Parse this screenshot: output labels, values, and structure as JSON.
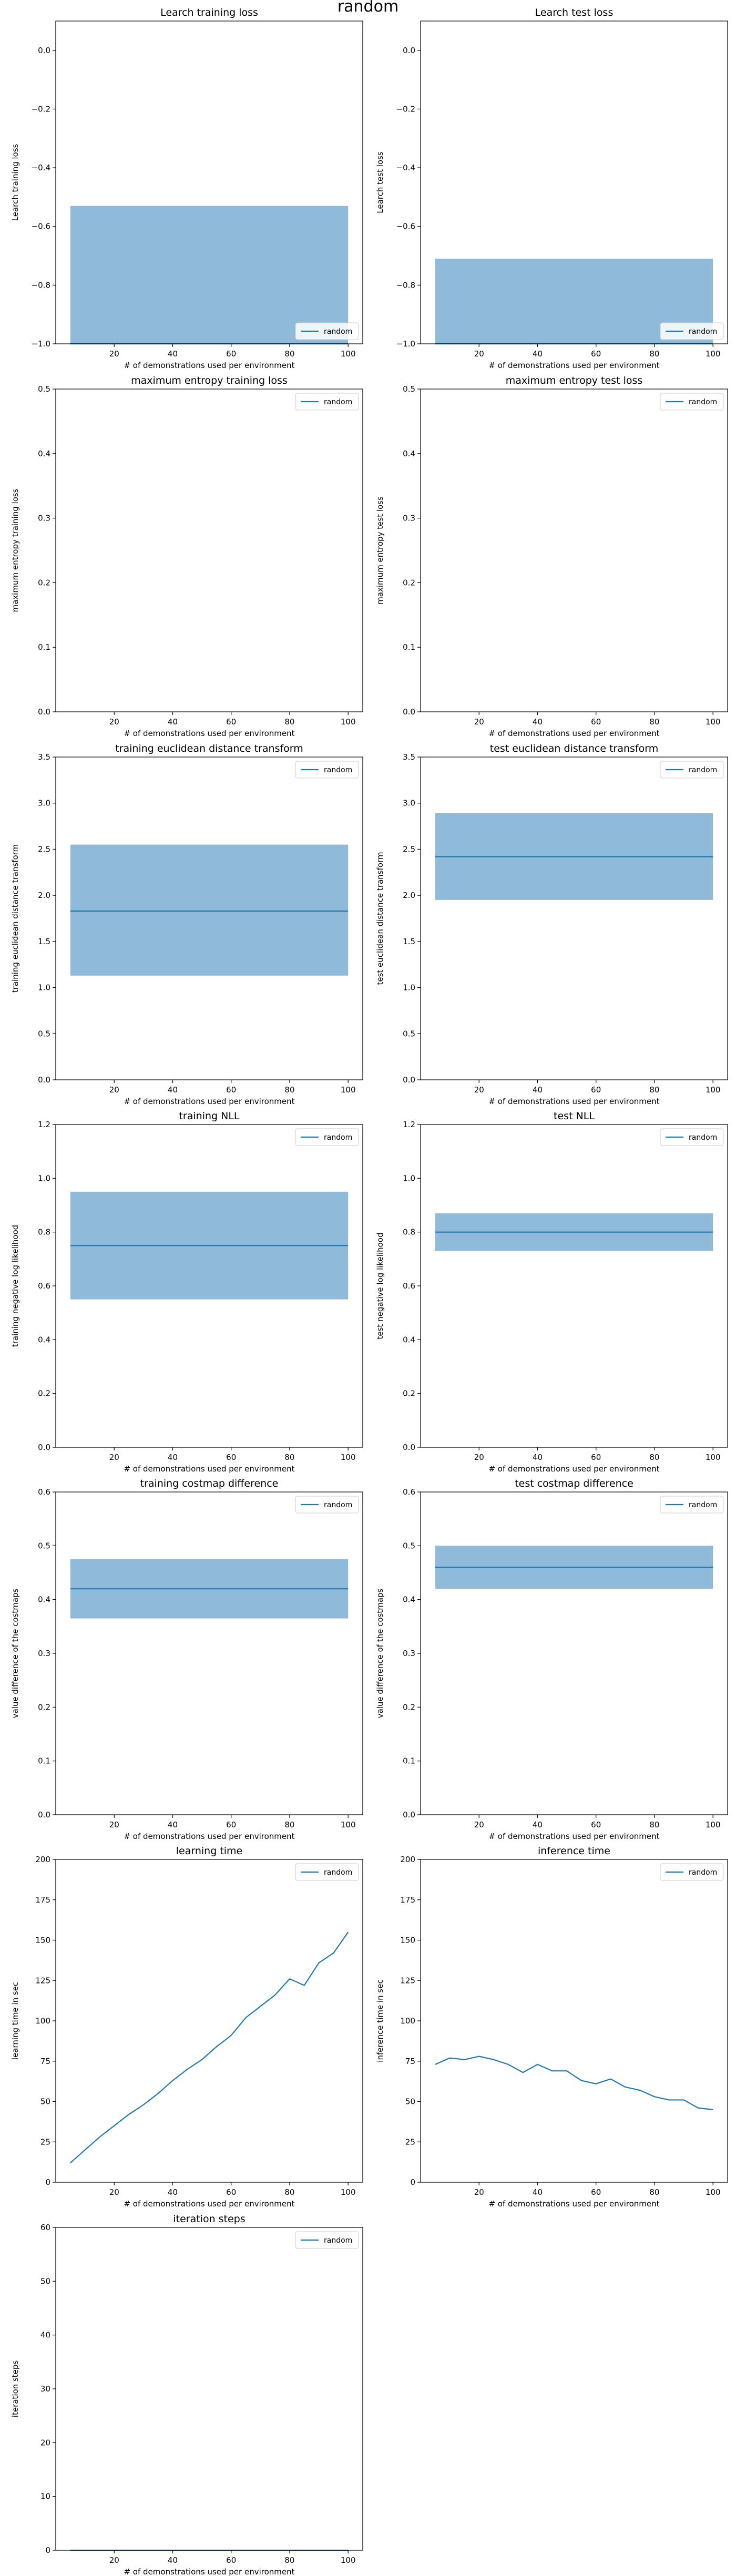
{
  "figure": {
    "suptitle": "random"
  },
  "colors": {
    "band": "#8fbad9",
    "line": "#1f77b4",
    "axes": "#000000"
  },
  "chart_data": [
    {
      "type": "area",
      "title": "Learch training loss",
      "xlabel": "# of demonstrations used per environment",
      "ylabel": "Learch training loss",
      "xlim": [
        0,
        105
      ],
      "ylim": [
        -1.0,
        0.1
      ],
      "xticks": [
        20,
        40,
        60,
        80,
        100
      ],
      "yticks": [
        0.0,
        -0.2,
        -0.4,
        -0.6,
        -0.8,
        -1.0
      ],
      "ytick_labels": [
        "0.0",
        "−0.2",
        "−0.4",
        "−0.6",
        "−0.8",
        "−1.0"
      ],
      "legend": "lower right",
      "series": [
        {
          "name": "random",
          "x": [
            5,
            100
          ],
          "y": [
            -1.0,
            -1.0
          ],
          "lower": [
            -1.0,
            -1.0
          ],
          "upper": [
            -0.53,
            -0.53
          ]
        }
      ]
    },
    {
      "type": "area",
      "title": "Learch test loss",
      "xlabel": "# of demonstrations used per environment",
      "ylabel": "Learch test loss",
      "xlim": [
        0,
        105
      ],
      "ylim": [
        -1.0,
        0.1
      ],
      "xticks": [
        20,
        40,
        60,
        80,
        100
      ],
      "yticks": [
        0.0,
        -0.2,
        -0.4,
        -0.6,
        -0.8,
        -1.0
      ],
      "ytick_labels": [
        "0.0",
        "−0.2",
        "−0.4",
        "−0.6",
        "−0.8",
        "−1.0"
      ],
      "legend": "lower right",
      "series": [
        {
          "name": "random",
          "x": [
            5,
            100
          ],
          "y": [
            -1.0,
            -1.0
          ],
          "lower": [
            -1.0,
            -1.0
          ],
          "upper": [
            -0.71,
            -0.71
          ]
        }
      ]
    },
    {
      "type": "line",
      "title": "maximum entropy training loss",
      "xlabel": "# of demonstrations used per environment",
      "ylabel": "maximum entropy training loss",
      "xlim": [
        0,
        105
      ],
      "ylim": [
        0,
        0.5
      ],
      "xticks": [
        20,
        40,
        60,
        80,
        100
      ],
      "yticks": [
        0.0,
        0.1,
        0.2,
        0.3,
        0.4,
        0.5
      ],
      "ytick_labels": [
        "0.0",
        "0.1",
        "0.2",
        "0.3",
        "0.4",
        "0.5"
      ],
      "legend": "upper right",
      "series": [
        {
          "name": "random",
          "x": [],
          "y": []
        }
      ]
    },
    {
      "type": "line",
      "title": "maximum entropy test loss",
      "xlabel": "# of demonstrations used per environment",
      "ylabel": "maximum entropy test loss",
      "xlim": [
        0,
        105
      ],
      "ylim": [
        0,
        0.5
      ],
      "xticks": [
        20,
        40,
        60,
        80,
        100
      ],
      "yticks": [
        0.0,
        0.1,
        0.2,
        0.3,
        0.4,
        0.5
      ],
      "ytick_labels": [
        "0.0",
        "0.1",
        "0.2",
        "0.3",
        "0.4",
        "0.5"
      ],
      "legend": "upper right",
      "series": [
        {
          "name": "random",
          "x": [],
          "y": []
        }
      ]
    },
    {
      "type": "area",
      "title": "training euclidean distance transform",
      "xlabel": "# of demonstrations used per environment",
      "ylabel": "training euclidean distance transform",
      "xlim": [
        0,
        105
      ],
      "ylim": [
        0,
        3.5
      ],
      "xticks": [
        20,
        40,
        60,
        80,
        100
      ],
      "yticks": [
        0.0,
        0.5,
        1.0,
        1.5,
        2.0,
        2.5,
        3.0,
        3.5
      ],
      "ytick_labels": [
        "0.0",
        "0.5",
        "1.0",
        "1.5",
        "2.0",
        "2.5",
        "3.0",
        "3.5"
      ],
      "legend": "upper right",
      "series": [
        {
          "name": "random",
          "x": [
            5,
            100
          ],
          "y": [
            1.83,
            1.83
          ],
          "lower": [
            1.13,
            1.13
          ],
          "upper": [
            2.55,
            2.55
          ]
        }
      ]
    },
    {
      "type": "area",
      "title": "test euclidean distance transform",
      "xlabel": "# of demonstrations used per environment",
      "ylabel": "test euclidean distance transform",
      "xlim": [
        0,
        105
      ],
      "ylim": [
        0,
        3.5
      ],
      "xticks": [
        20,
        40,
        60,
        80,
        100
      ],
      "yticks": [
        0.0,
        0.5,
        1.0,
        1.5,
        2.0,
        2.5,
        3.0,
        3.5
      ],
      "ytick_labels": [
        "0.0",
        "0.5",
        "1.0",
        "1.5",
        "2.0",
        "2.5",
        "3.0",
        "3.5"
      ],
      "legend": "upper right",
      "series": [
        {
          "name": "random",
          "x": [
            5,
            100
          ],
          "y": [
            2.42,
            2.42
          ],
          "lower": [
            1.95,
            1.95
          ],
          "upper": [
            2.89,
            2.89
          ]
        }
      ]
    },
    {
      "type": "area",
      "title": "training NLL",
      "xlabel": "# of demonstrations used per environment",
      "ylabel": "training negative log likelihood",
      "xlim": [
        0,
        105
      ],
      "ylim": [
        0,
        1.2
      ],
      "xticks": [
        20,
        40,
        60,
        80,
        100
      ],
      "yticks": [
        0.0,
        0.2,
        0.4,
        0.6,
        0.8,
        1.0,
        1.2
      ],
      "ytick_labels": [
        "0.0",
        "0.2",
        "0.4",
        "0.6",
        "0.8",
        "1.0",
        "1.2"
      ],
      "legend": "upper right",
      "series": [
        {
          "name": "random",
          "x": [
            5,
            100
          ],
          "y": [
            0.75,
            0.75
          ],
          "lower": [
            0.55,
            0.55
          ],
          "upper": [
            0.95,
            0.95
          ]
        }
      ]
    },
    {
      "type": "area",
      "title": "test NLL",
      "xlabel": "# of demonstrations used per environment",
      "ylabel": "test negative log likelihood",
      "xlim": [
        0,
        105
      ],
      "ylim": [
        0,
        1.2
      ],
      "xticks": [
        20,
        40,
        60,
        80,
        100
      ],
      "yticks": [
        0.0,
        0.2,
        0.4,
        0.6,
        0.8,
        1.0,
        1.2
      ],
      "ytick_labels": [
        "0.0",
        "0.2",
        "0.4",
        "0.6",
        "0.8",
        "1.0",
        "1.2"
      ],
      "legend": "upper right",
      "series": [
        {
          "name": "random",
          "x": [
            5,
            100
          ],
          "y": [
            0.8,
            0.8
          ],
          "lower": [
            0.73,
            0.73
          ],
          "upper": [
            0.87,
            0.87
          ]
        }
      ]
    },
    {
      "type": "area",
      "title": "training costmap difference",
      "xlabel": "# of demonstrations used per environment",
      "ylabel": "value difference of the costmaps",
      "xlim": [
        0,
        105
      ],
      "ylim": [
        0,
        0.6
      ],
      "xticks": [
        20,
        40,
        60,
        80,
        100
      ],
      "yticks": [
        0.0,
        0.1,
        0.2,
        0.3,
        0.4,
        0.5,
        0.6
      ],
      "ytick_labels": [
        "0.0",
        "0.1",
        "0.2",
        "0.3",
        "0.4",
        "0.5",
        "0.6"
      ],
      "legend": "upper right",
      "series": [
        {
          "name": "random",
          "x": [
            5,
            100
          ],
          "y": [
            0.42,
            0.42
          ],
          "lower": [
            0.365,
            0.365
          ],
          "upper": [
            0.475,
            0.475
          ]
        }
      ]
    },
    {
      "type": "area",
      "title": "test costmap difference",
      "xlabel": "# of demonstrations used per environment",
      "ylabel": "value difference of the costmaps",
      "xlim": [
        0,
        105
      ],
      "ylim": [
        0,
        0.6
      ],
      "xticks": [
        20,
        40,
        60,
        80,
        100
      ],
      "yticks": [
        0.0,
        0.1,
        0.2,
        0.3,
        0.4,
        0.5,
        0.6
      ],
      "ytick_labels": [
        "0.0",
        "0.1",
        "0.2",
        "0.3",
        "0.4",
        "0.5",
        "0.6"
      ],
      "legend": "upper right",
      "series": [
        {
          "name": "random",
          "x": [
            5,
            100
          ],
          "y": [
            0.46,
            0.46
          ],
          "lower": [
            0.42,
            0.42
          ],
          "upper": [
            0.5,
            0.5
          ]
        }
      ]
    },
    {
      "type": "line",
      "title": "learning time",
      "xlabel": "# of demonstrations used per environment",
      "ylabel": "learning time in sec",
      "xlim": [
        0,
        105
      ],
      "ylim": [
        0,
        200
      ],
      "xticks": [
        20,
        40,
        60,
        80,
        100
      ],
      "yticks": [
        0,
        25,
        50,
        75,
        100,
        125,
        150,
        175,
        200
      ],
      "ytick_labels": [
        "0",
        "25",
        "50",
        "75",
        "100",
        "125",
        "150",
        "175",
        "200"
      ],
      "legend": "upper right",
      "series": [
        {
          "name": "random",
          "x": [
            5,
            10,
            15,
            20,
            25,
            30,
            35,
            40,
            45,
            50,
            55,
            60,
            65,
            70,
            75,
            80,
            85,
            90,
            95,
            100
          ],
          "y": [
            12,
            20,
            28,
            35,
            42,
            48,
            55,
            63,
            70,
            76,
            84,
            91,
            102,
            109,
            116,
            126,
            122,
            136,
            142,
            155
          ]
        }
      ]
    },
    {
      "type": "line",
      "title": "inference time",
      "xlabel": "# of demonstrations used per environment",
      "ylabel": "inference time in sec",
      "xlim": [
        0,
        105
      ],
      "ylim": [
        0,
        200
      ],
      "xticks": [
        20,
        40,
        60,
        80,
        100
      ],
      "yticks": [
        0,
        25,
        50,
        75,
        100,
        125,
        150,
        175,
        200
      ],
      "ytick_labels": [
        "0",
        "25",
        "50",
        "75",
        "100",
        "125",
        "150",
        "175",
        "200"
      ],
      "legend": "upper right",
      "series": [
        {
          "name": "random",
          "x": [
            5,
            10,
            15,
            20,
            25,
            30,
            35,
            40,
            45,
            50,
            55,
            60,
            65,
            70,
            75,
            80,
            85,
            90,
            95,
            100
          ],
          "y": [
            73,
            77,
            76,
            78,
            76,
            73,
            68,
            73,
            69,
            69,
            63,
            61,
            64,
            59,
            57,
            53,
            51,
            51,
            46,
            45
          ]
        }
      ]
    },
    {
      "type": "line",
      "title": "iteration steps",
      "xlabel": "# of demonstrations used per environment",
      "ylabel": "iteration steps",
      "xlim": [
        0,
        105
      ],
      "ylim": [
        0,
        60
      ],
      "xticks": [
        20,
        40,
        60,
        80,
        100
      ],
      "yticks": [
        0,
        10,
        20,
        30,
        40,
        50,
        60
      ],
      "ytick_labels": [
        "0",
        "10",
        "20",
        "30",
        "40",
        "50",
        "60"
      ],
      "legend": "upper right",
      "series": [
        {
          "name": "random",
          "x": [
            5,
            100
          ],
          "y": [
            0,
            0
          ]
        }
      ]
    }
  ]
}
